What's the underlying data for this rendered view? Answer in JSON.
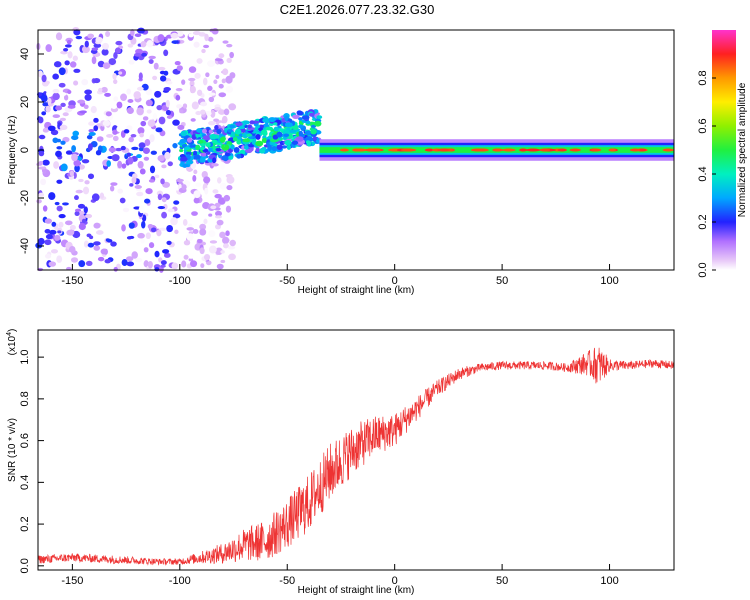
{
  "title": "C2E1.2026.077.23.32.G30",
  "colors": {
    "snr_line": "#ee3333",
    "axis": "#000000"
  },
  "chart_data": [
    {
      "type": "heatmap",
      "name": "spectrogram",
      "xlabel": "Height of straight line (km)",
      "ylabel": "Frequency (Hz)",
      "xlim": [
        -166,
        130
      ],
      "ylim": [
        -50,
        50
      ],
      "xticks": [
        -150,
        -100,
        -50,
        0,
        50,
        100
      ],
      "xtick_labels": [
        "-150",
        "-100",
        "-50",
        "0",
        "50",
        "100"
      ],
      "yticks": [
        -40,
        -20,
        0,
        20,
        40
      ],
      "ytick_labels": [
        "-40",
        "-20",
        "0",
        "20",
        "40"
      ],
      "colorbar": {
        "label": "Normalized spectral amplitude",
        "range": [
          0.0,
          1.0
        ],
        "ticks": [
          0.0,
          0.2,
          0.4,
          0.6,
          0.8
        ],
        "tick_labels": [
          "0.0",
          "0.2",
          "0.4",
          "0.6",
          "0.8"
        ]
      },
      "features": [
        {
          "x_range": [
            -166,
            -100
          ],
          "freq_range": [
            -50,
            50
          ],
          "level": 0.1,
          "kind": "scattered"
        },
        {
          "x_range": [
            -100,
            -35
          ],
          "freq_center": [
            0,
            10
          ],
          "level": 0.3,
          "kind": "rising band"
        },
        {
          "x_range": [
            -35,
            130
          ],
          "freq_center": [
            0,
            0
          ],
          "level": 0.6,
          "kind": "steady carrier"
        }
      ]
    },
    {
      "type": "line",
      "name": "snr",
      "xlabel": "Height of straight line (km)",
      "ylabel": "SNR (10 * v/v)",
      "yscale_label": "(x10",
      "yscale_exp": "4",
      "xlim": [
        -166,
        130
      ],
      "ylim": [
        -0.02,
        1.13
      ],
      "xticks": [
        -150,
        -100,
        -50,
        0,
        50,
        100
      ],
      "xtick_labels": [
        "-150",
        "-100",
        "-50",
        "0",
        "50",
        "100"
      ],
      "yticks": [
        0.0,
        0.2,
        0.4,
        0.6,
        0.8,
        1.0
      ],
      "ytick_labels": [
        "0.0",
        "0.2",
        "0.4",
        "0.6",
        "0.8",
        "1.0"
      ],
      "x": [
        -166,
        -150,
        -130,
        -110,
        -100,
        -90,
        -80,
        -70,
        -60,
        -50,
        -40,
        -30,
        -20,
        -10,
        0,
        10,
        20,
        30,
        40,
        50,
        60,
        70,
        80,
        90,
        95,
        100,
        110,
        120,
        130
      ],
      "values": [
        0.03,
        0.04,
        0.03,
        0.02,
        0.02,
        0.04,
        0.06,
        0.1,
        0.12,
        0.2,
        0.3,
        0.45,
        0.55,
        0.62,
        0.65,
        0.75,
        0.85,
        0.92,
        0.95,
        0.96,
        0.96,
        0.96,
        0.95,
        0.97,
        0.96,
        0.96,
        0.96,
        0.97,
        0.96
      ],
      "noise": [
        0.02,
        0.02,
        0.02,
        0.015,
        0.015,
        0.03,
        0.05,
        0.08,
        0.1,
        0.12,
        0.14,
        0.14,
        0.12,
        0.1,
        0.08,
        0.06,
        0.04,
        0.03,
        0.02,
        0.02,
        0.02,
        0.02,
        0.02,
        0.06,
        0.1,
        0.03,
        0.02,
        0.02,
        0.02
      ]
    }
  ]
}
